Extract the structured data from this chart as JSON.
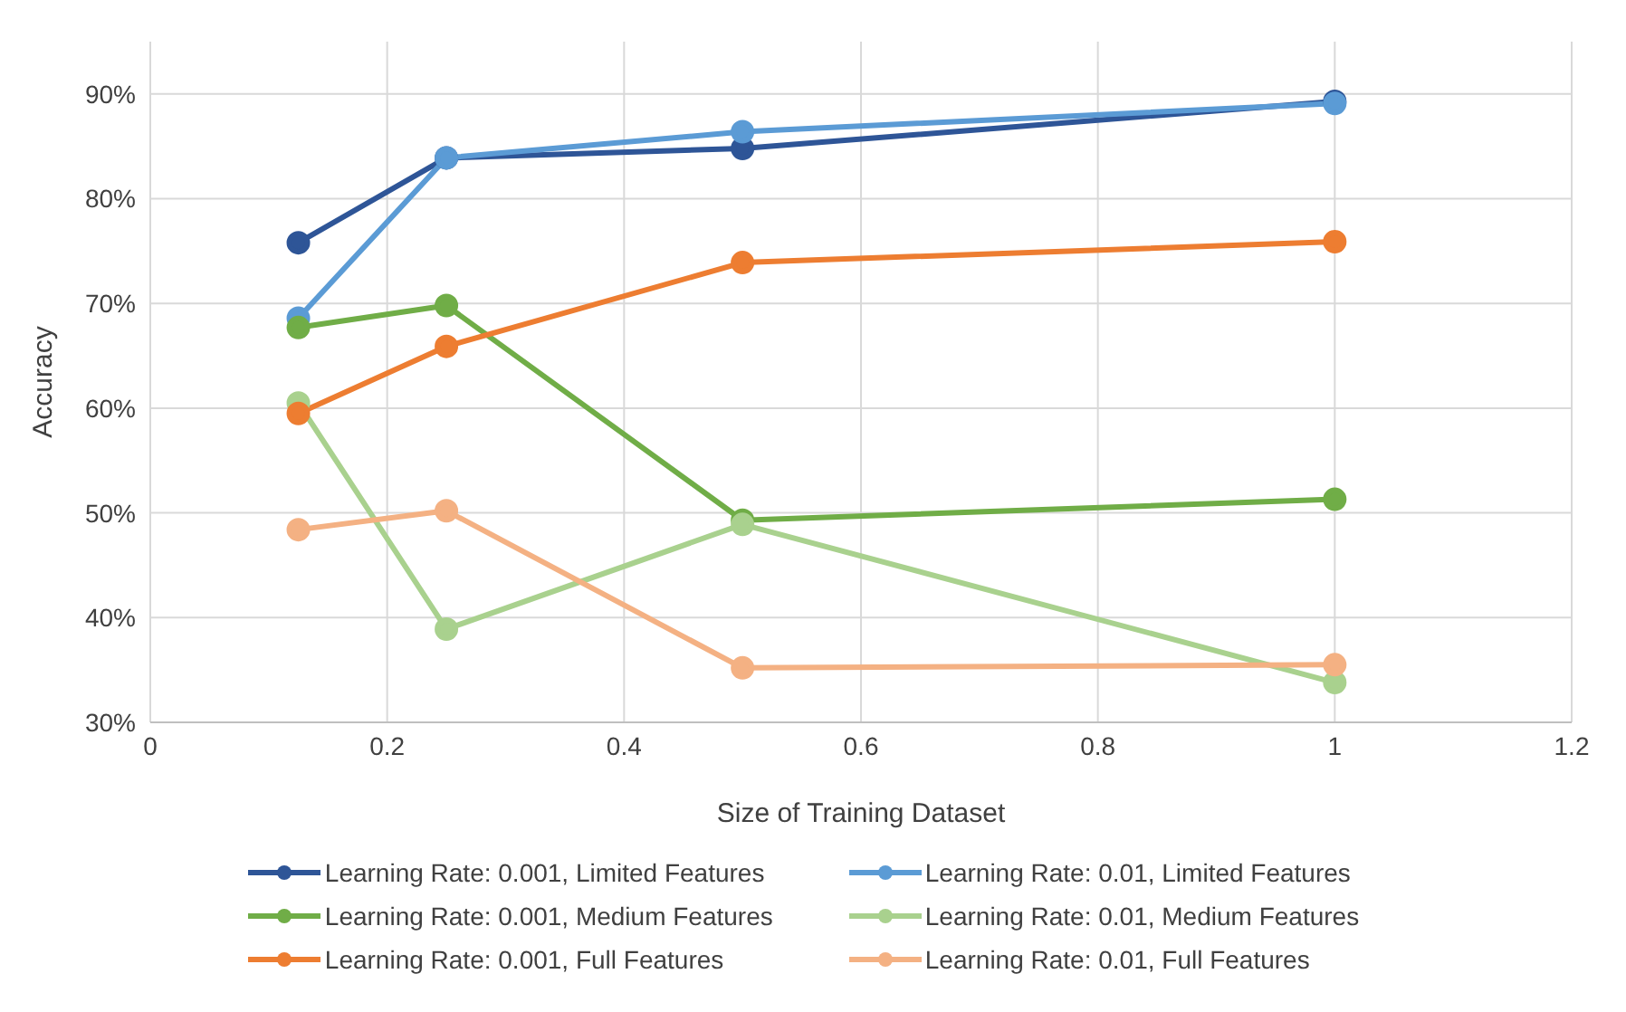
{
  "chart_data": {
    "type": "line",
    "xlabel": "Size of Training Dataset",
    "ylabel": "Accuracy",
    "x": [
      0.125,
      0.25,
      0.5,
      1
    ],
    "xlim": [
      0,
      1.2
    ],
    "xticks": [
      0,
      0.2,
      0.4,
      0.6,
      0.8,
      1,
      1.2
    ],
    "ylim": [
      30,
      95
    ],
    "yticks": [
      {
        "value": 30,
        "label": "30%"
      },
      {
        "value": 40,
        "label": "40%"
      },
      {
        "value": 50,
        "label": "50%"
      },
      {
        "value": 60,
        "label": "60%"
      },
      {
        "value": 70,
        "label": "70%"
      },
      {
        "value": 80,
        "label": "80%"
      },
      {
        "value": 90,
        "label": "90%"
      }
    ],
    "grid": true,
    "legend": "bottom",
    "marker": "circle",
    "line_style": "solid",
    "series": [
      {
        "name": "Learning Rate: 0.001, Limited Features",
        "color": "#2e5597",
        "values": [
          75.8,
          83.9,
          84.8,
          89.3
        ]
      },
      {
        "name": "Learning Rate: 0.01, Limited Features",
        "color": "#5b9bd5",
        "values": [
          68.6,
          83.9,
          86.4,
          89.1
        ]
      },
      {
        "name": "Learning Rate: 0.001, Medium Features",
        "color": "#70ad47",
        "values": [
          67.7,
          69.8,
          49.3,
          51.3
        ]
      },
      {
        "name": "Learning Rate: 0.01, Medium Features",
        "color": "#a9d18e",
        "values": [
          60.5,
          38.9,
          48.9,
          33.8
        ]
      },
      {
        "name": "Learning Rate: 0.001, Full Features",
        "color": "#ed7d31",
        "values": [
          59.5,
          65.9,
          73.9,
          75.9
        ]
      },
      {
        "name": "Learning Rate: 0.01, Full Features",
        "color": "#f4b183",
        "values": [
          48.4,
          50.2,
          35.2,
          35.5
        ]
      }
    ]
  }
}
